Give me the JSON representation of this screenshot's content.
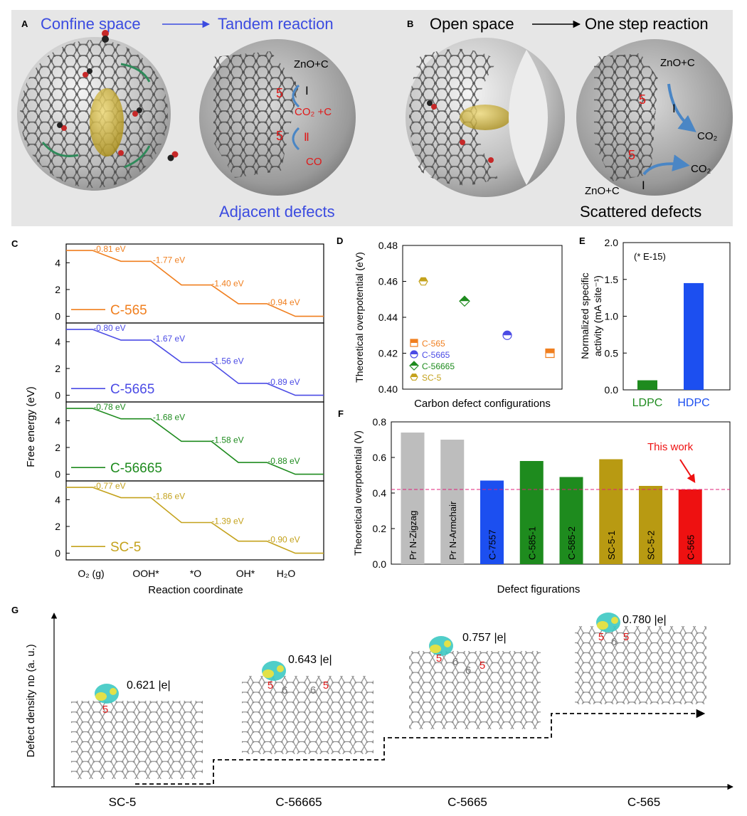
{
  "panel_A": {
    "letter": "A",
    "title_left": "Confine space",
    "title_right": "Tandem reaction",
    "label_zno": "ZnO+C",
    "label_co2": "CO₂ +C",
    "label_co": "CO",
    "step_I": "Ⅰ",
    "step_II": "Ⅱ",
    "ring5": "5",
    "caption": "Adjacent defects"
  },
  "panel_B": {
    "letter": "B",
    "title_left": "Open space",
    "title_right": "One step reaction",
    "label_zno_top": "ZnO+C",
    "label_zno_bottom": "ZnO+C",
    "label_co2": "CO₂",
    "step_I": "Ⅰ",
    "ring5": "5",
    "caption": "Scattered defects"
  },
  "panel_C": {
    "letter": "C",
    "ylabel": "Free energy (eV)",
    "xlabel": "Reaction coordinate",
    "xticks": [
      "O₂ (g)",
      "OOH*",
      "*O",
      "OH*",
      "H₂O"
    ],
    "yticks": [
      "0",
      "2",
      "4"
    ],
    "subplots": [
      {
        "name": "C-565",
        "color": "#F07F1F",
        "levels": [
          4.92,
          4.11,
          2.34,
          0.94,
          0.0
        ],
        "labels": [
          "-0.81 eV",
          "-1.77 eV",
          "-1.40 eV",
          "-0.94 eV"
        ]
      },
      {
        "name": "C-5665",
        "color": "#4B4BE5",
        "levels": [
          4.92,
          4.12,
          2.45,
          0.89,
          0.0
        ],
        "labels": [
          "-0.80 eV",
          "-1.67 eV",
          "-1.56 eV",
          "-0.89 eV"
        ]
      },
      {
        "name": "C-56665",
        "color": "#1E8B1E",
        "levels": [
          4.92,
          4.14,
          2.46,
          0.88,
          0.0
        ],
        "labels": [
          "-0.78 eV",
          "-1.68 eV",
          "-1.58 eV",
          "-0.88 eV"
        ]
      },
      {
        "name": "SC-5",
        "color": "#C4A21C",
        "levels": [
          4.92,
          4.15,
          2.29,
          0.9,
          0.0
        ],
        "labels": [
          "-0.77 eV",
          "-1.86 eV",
          "-1.39 eV",
          "-0.90 eV"
        ]
      }
    ]
  },
  "panel_D": {
    "letter": "D",
    "ylabel": "Theoretical overpotential (eV)",
    "xlabel": "Carbon defect configurations",
    "yticks": [
      "0.40",
      "0.42",
      "0.44",
      "0.46",
      "0.48"
    ],
    "ylim": [
      0.4,
      0.48
    ],
    "points": [
      {
        "name": "SC-5",
        "value": 0.46,
        "color": "#C4A21C",
        "shape": "hexagon"
      },
      {
        "name": "C-56665",
        "value": 0.449,
        "color": "#1E8B1E",
        "shape": "diamond"
      },
      {
        "name": "C-5665",
        "value": 0.43,
        "color": "#4B4BE5",
        "shape": "circle"
      },
      {
        "name": "C-565",
        "value": 0.42,
        "color": "#F07F1F",
        "shape": "square"
      }
    ],
    "legend": [
      "C-565",
      "C-5665",
      "C-56665",
      "SC-5"
    ]
  },
  "panel_E": {
    "letter": "E",
    "ylabel_line1": "Normalized specific",
    "ylabel_line2": "activity (mA site⁻¹)",
    "annotation": "(* E-15)",
    "yticks": [
      "0.0",
      "0.5",
      "1.0",
      "1.5",
      "2.0"
    ],
    "ylim": [
      0,
      2.0
    ],
    "bars": [
      {
        "name": "LDPC",
        "value": 0.13,
        "color": "#1E8B1E"
      },
      {
        "name": "HDPC",
        "value": 1.45,
        "color": "#1C4FF0"
      }
    ]
  },
  "panel_F": {
    "letter": "F",
    "ylabel": "Theoretical overpotential (V)",
    "xlabel": "Defect figurations",
    "yticks": [
      "0.0",
      "0.2",
      "0.4",
      "0.6",
      "0.8"
    ],
    "ylim": [
      0,
      0.8
    ],
    "reference_line": 0.42,
    "annotation": "This work",
    "bars": [
      {
        "name": "Pr N-Zigzag",
        "value": 0.74,
        "color": "#BDBDBD"
      },
      {
        "name": "Pr N-Armchair",
        "value": 0.7,
        "color": "#BDBDBD"
      },
      {
        "name": "C-7557",
        "value": 0.47,
        "color": "#1C4FF0"
      },
      {
        "name": "C-585-1",
        "value": 0.58,
        "color": "#1E8B1E"
      },
      {
        "name": "C-585-2",
        "value": 0.49,
        "color": "#1E8B1E"
      },
      {
        "name": "SC-5-1",
        "value": 0.59,
        "color": "#B89A12"
      },
      {
        "name": "SC-5-2",
        "value": 0.44,
        "color": "#B89A12"
      },
      {
        "name": "C-565",
        "value": 0.42,
        "color": "#EE1111"
      }
    ]
  },
  "panel_G": {
    "letter": "G",
    "ylabel": "Defect density nᴅ (a. u.)",
    "structures": [
      {
        "name": "SC-5",
        "charge": "0.621 |e|",
        "rings": [
          "5"
        ]
      },
      {
        "name": "C-56665",
        "charge": "0.643 |e|",
        "rings": [
          "5",
          "6",
          "6",
          "5"
        ]
      },
      {
        "name": "C-5665",
        "charge": "0.757 |e|",
        "rings": [
          "5",
          "6",
          "6",
          "5"
        ]
      },
      {
        "name": "C-565",
        "charge": "0.780 |e|",
        "rings": [
          "5",
          "6",
          "5"
        ]
      }
    ]
  }
}
